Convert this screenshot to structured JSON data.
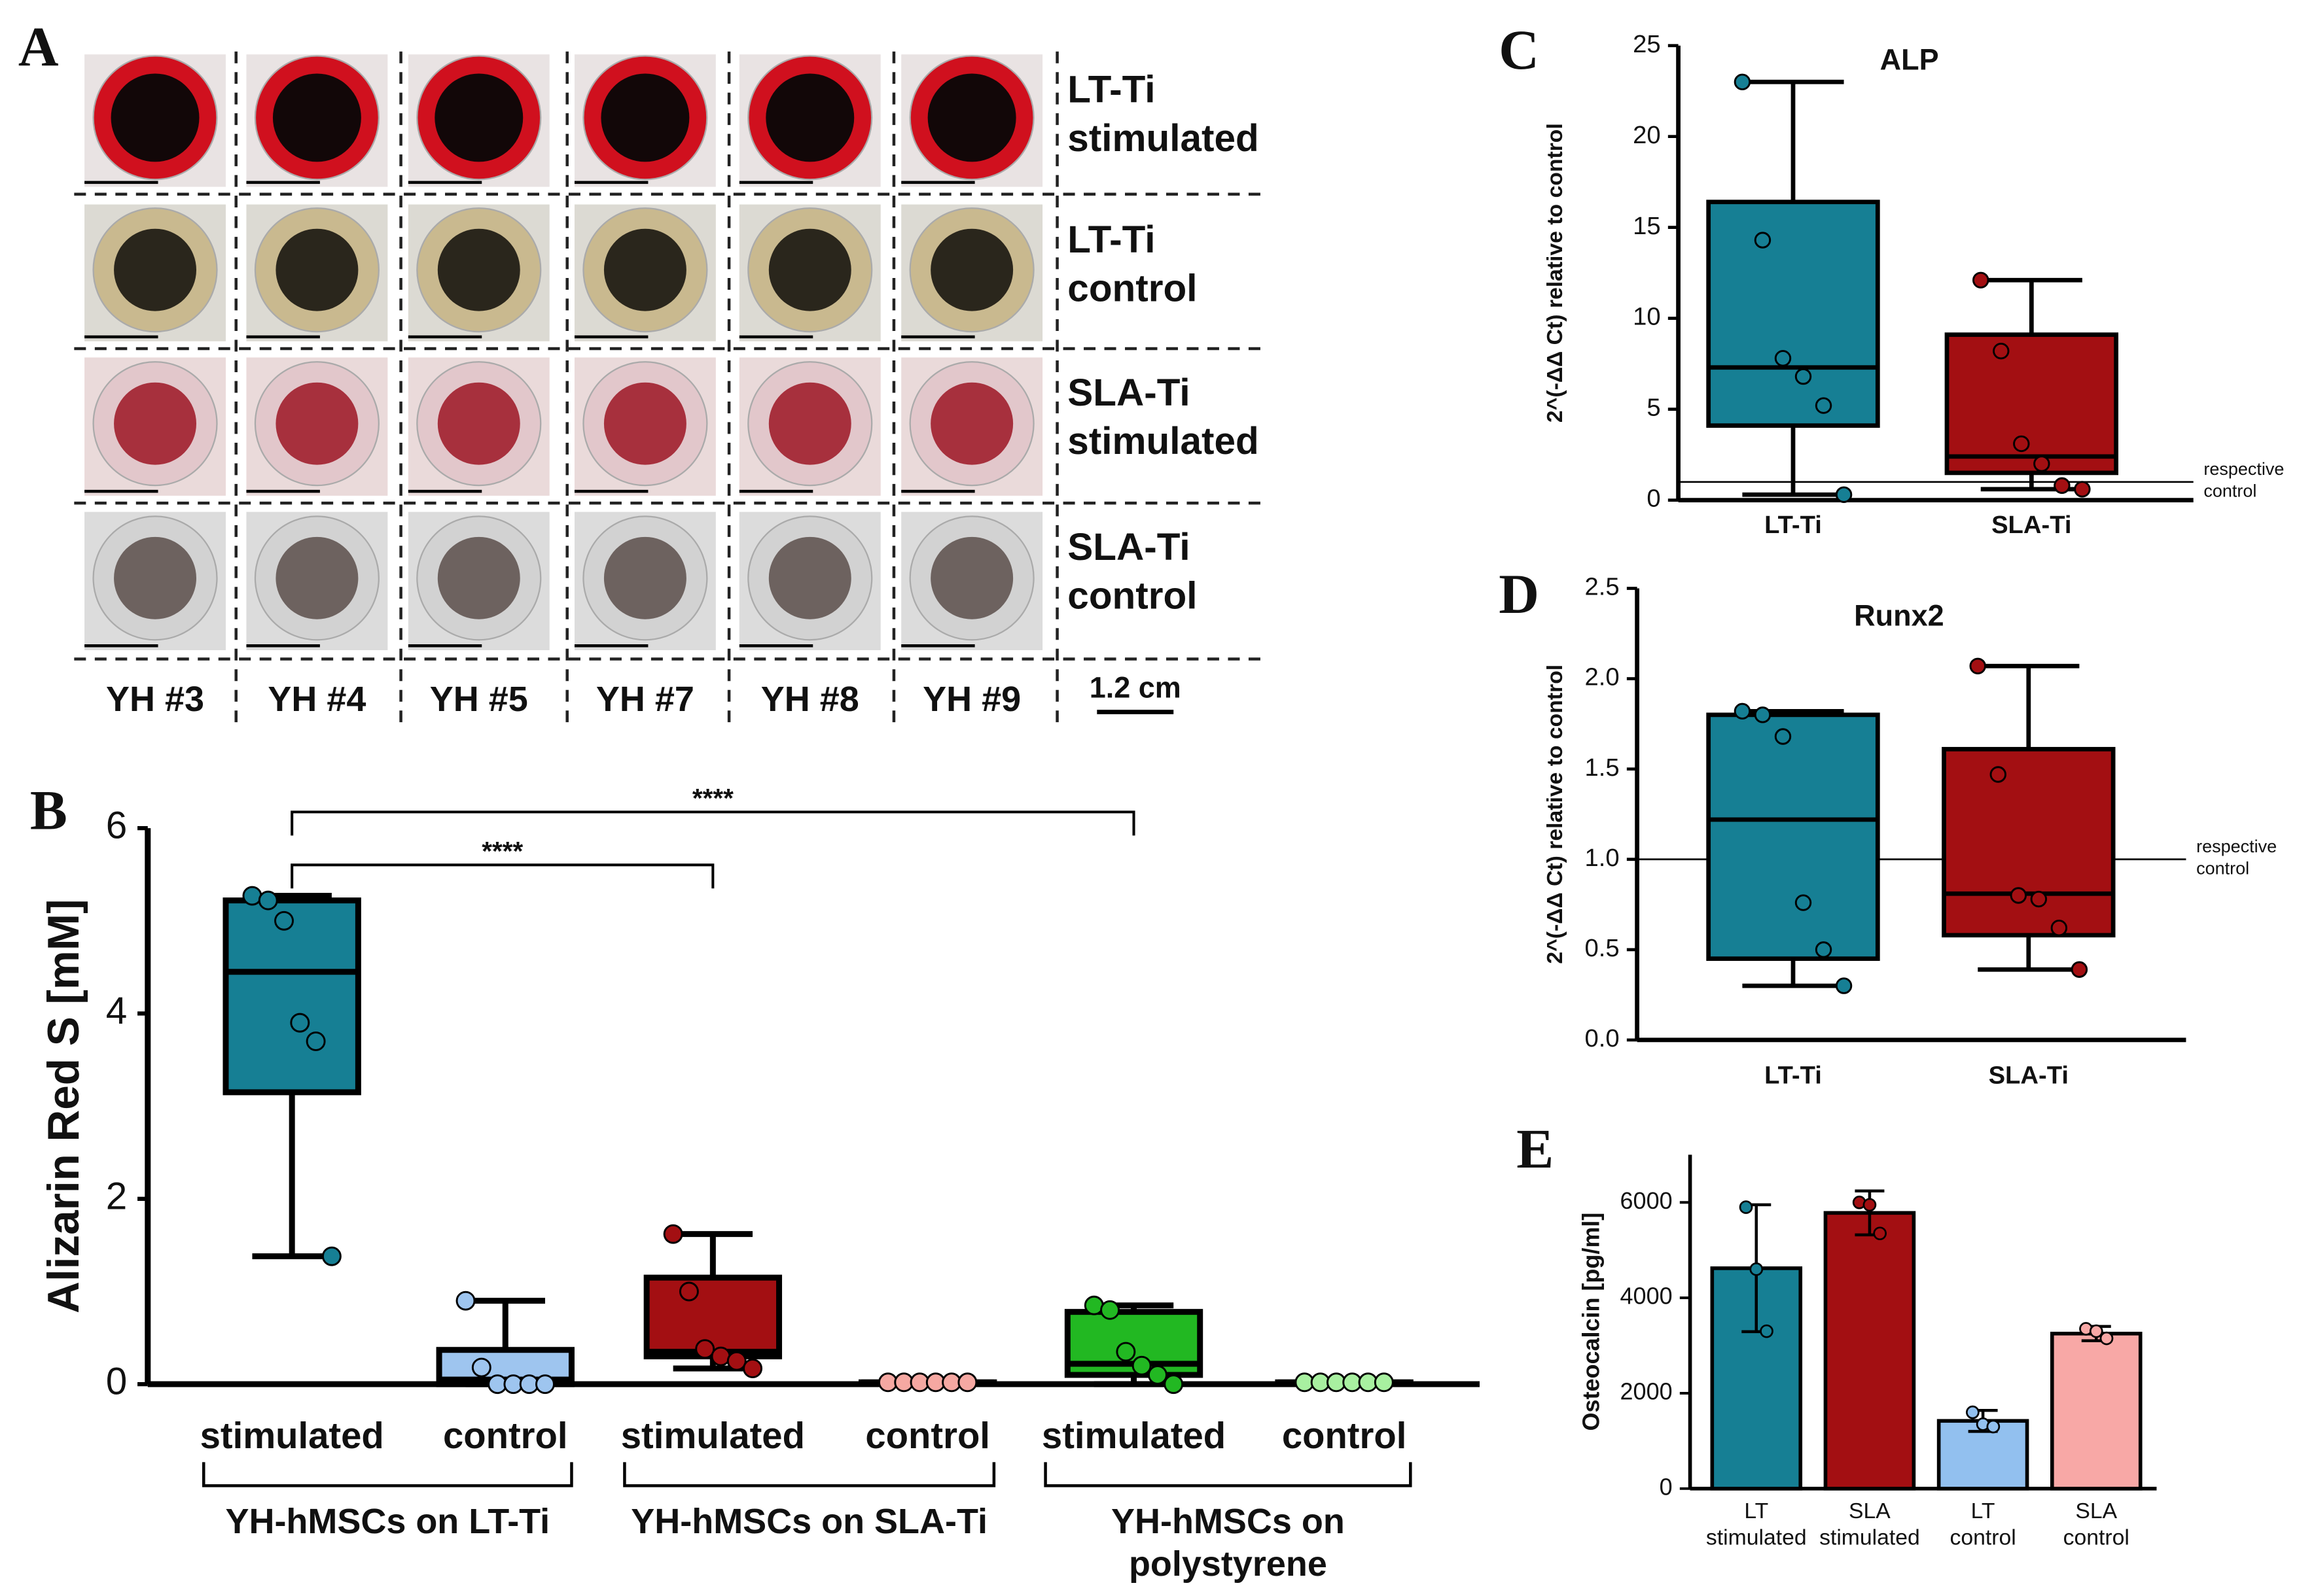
{
  "photo_panel": {
    "label": "A",
    "columns": [
      "YH #3",
      "YH #4",
      "YH #5",
      "YH #7",
      "YH #8",
      "YH #9"
    ],
    "rows": [
      "LT-Ti stimulated",
      "LT-Ti control",
      "SLA-Ti stimulated",
      "SLA-Ti control"
    ],
    "scale_bar": "1.2 cm"
  },
  "chart_data": [
    {
      "type": "box",
      "label": "B",
      "y_label": "Alizarin Red S [mM]",
      "ylim": [
        0,
        6
      ],
      "yticks": [
        0,
        2,
        4,
        6
      ],
      "categories": [
        "stimulated",
        "control",
        "stimulated",
        "control",
        "stimulated",
        "control"
      ],
      "boxes": [
        {
          "color": "#167f94",
          "min": 1.38,
          "q1": 3.15,
          "median": 4.45,
          "q3": 5.22,
          "max": 5.27,
          "points": [
            5.27,
            5.22,
            5.0,
            3.9,
            3.7,
            1.38
          ]
        },
        {
          "color": "#9ec5ef",
          "min": 0,
          "q1": 0,
          "median": 0.05,
          "q3": 0.37,
          "max": 0.9,
          "points": [
            0.9,
            0.18,
            0,
            0,
            0,
            0
          ]
        },
        {
          "color": "#a30f12",
          "min": 0.17,
          "q1": 0.3,
          "median": 0.35,
          "q3": 1.15,
          "max": 1.62,
          "points": [
            1.62,
            1.0,
            0.38,
            0.3,
            0.25,
            0.17
          ]
        },
        {
          "color": "#f5a8a2",
          "min": 0.02,
          "q1": 0.02,
          "median": 0.02,
          "q3": 0.02,
          "max": 0.02,
          "points": [
            0.02,
            0.02,
            0.02,
            0.02,
            0.02,
            0.02
          ]
        },
        {
          "color": "#22b822",
          "min": 0,
          "q1": 0.1,
          "median": 0.22,
          "q3": 0.78,
          "max": 0.85,
          "points": [
            0.85,
            0.8,
            0.35,
            0.2,
            0.1,
            0
          ]
        },
        {
          "color": "#a8f0a0",
          "min": 0.02,
          "q1": 0.02,
          "median": 0.02,
          "q3": 0.02,
          "max": 0.02,
          "points": [
            0.02,
            0.02,
            0.02,
            0.02,
            0.02,
            0.02
          ]
        }
      ],
      "groups": [
        {
          "label": "YH-hMSCs on LT-Ti",
          "span": [
            0,
            1
          ]
        },
        {
          "label": "YH-hMSCs on SLA-Ti",
          "span": [
            2,
            3
          ]
        },
        {
          "label": "YH-hMSCs on polystyrene",
          "span": [
            4,
            5
          ]
        }
      ],
      "annotations": [
        {
          "text": "****",
          "from": 0,
          "to": 2
        },
        {
          "text": "****",
          "from": 0,
          "to": 4
        }
      ]
    },
    {
      "type": "box",
      "label": "C",
      "title": "ALP",
      "y_label": "2^(-ΔΔ Ct) relative to control",
      "ylim": [
        0,
        25
      ],
      "yticks": [
        0,
        5,
        10,
        15,
        20,
        25
      ],
      "categories": [
        "LT-Ti",
        "SLA-Ti"
      ],
      "boxes": [
        {
          "color": "#167f94",
          "min": 0.3,
          "q1": 4.1,
          "median": 7.3,
          "q3": 16.4,
          "max": 23,
          "points": [
            23,
            14.3,
            7.8,
            6.8,
            5.2,
            0.3
          ]
        },
        {
          "color": "#a30f12",
          "min": 0.6,
          "q1": 1.5,
          "median": 2.4,
          "q3": 9.1,
          "max": 12.1,
          "points": [
            12.1,
            8.2,
            3.1,
            2.0,
            0.8,
            0.6
          ]
        }
      ],
      "reference": {
        "value": 1,
        "label": "respective control"
      }
    },
    {
      "type": "box",
      "label": "D",
      "title": "Runx2",
      "y_label": "2^(-ΔΔ Ct) relative to control",
      "ylim": [
        0,
        2.5
      ],
      "yticks": [
        {
          "value": 0,
          "label": "0.0"
        },
        {
          "value": 0.5,
          "label": "0.5"
        },
        {
          "value": 1,
          "label": "1.0"
        },
        {
          "value": 1.5,
          "label": "1.5"
        },
        {
          "value": 2,
          "label": "2.0"
        },
        {
          "value": 2.5,
          "label": "2.5"
        }
      ],
      "categories": [
        "LT-Ti",
        "SLA-Ti"
      ],
      "boxes": [
        {
          "color": "#167f94",
          "min": 0.3,
          "q1": 0.45,
          "median": 1.22,
          "q3": 1.8,
          "max": 1.82,
          "points": [
            1.82,
            1.8,
            1.68,
            0.76,
            0.5,
            0.3
          ]
        },
        {
          "color": "#a30f12",
          "min": 0.39,
          "q1": 0.58,
          "median": 0.81,
          "q3": 1.61,
          "max": 2.07,
          "points": [
            2.07,
            1.47,
            0.8,
            0.78,
            0.62,
            0.39
          ]
        }
      ],
      "reference": {
        "value": 1,
        "label": "respective control"
      }
    },
    {
      "type": "bar",
      "label": "E",
      "y_label": "Osteocalcin [pg/ml]",
      "ylim": [
        0,
        7000
      ],
      "yticks": [
        0,
        2000,
        4000,
        6000
      ],
      "categories": [
        "LT stimulated",
        "SLA stimulated",
        "LT control",
        "SLA control"
      ],
      "colors": [
        "#167f94",
        "#a30f12",
        "#92c0ef",
        "#f8a8a6"
      ],
      "values": [
        4620,
        5780,
        1420,
        3250
      ],
      "errors": [
        1330,
        460,
        220,
        150
      ],
      "points": [
        [
          5900,
          4600,
          3300
        ],
        [
          6000,
          5950,
          5350
        ],
        [
          1600,
          1350,
          1300
        ],
        [
          3350,
          3300,
          3150
        ]
      ]
    }
  ]
}
